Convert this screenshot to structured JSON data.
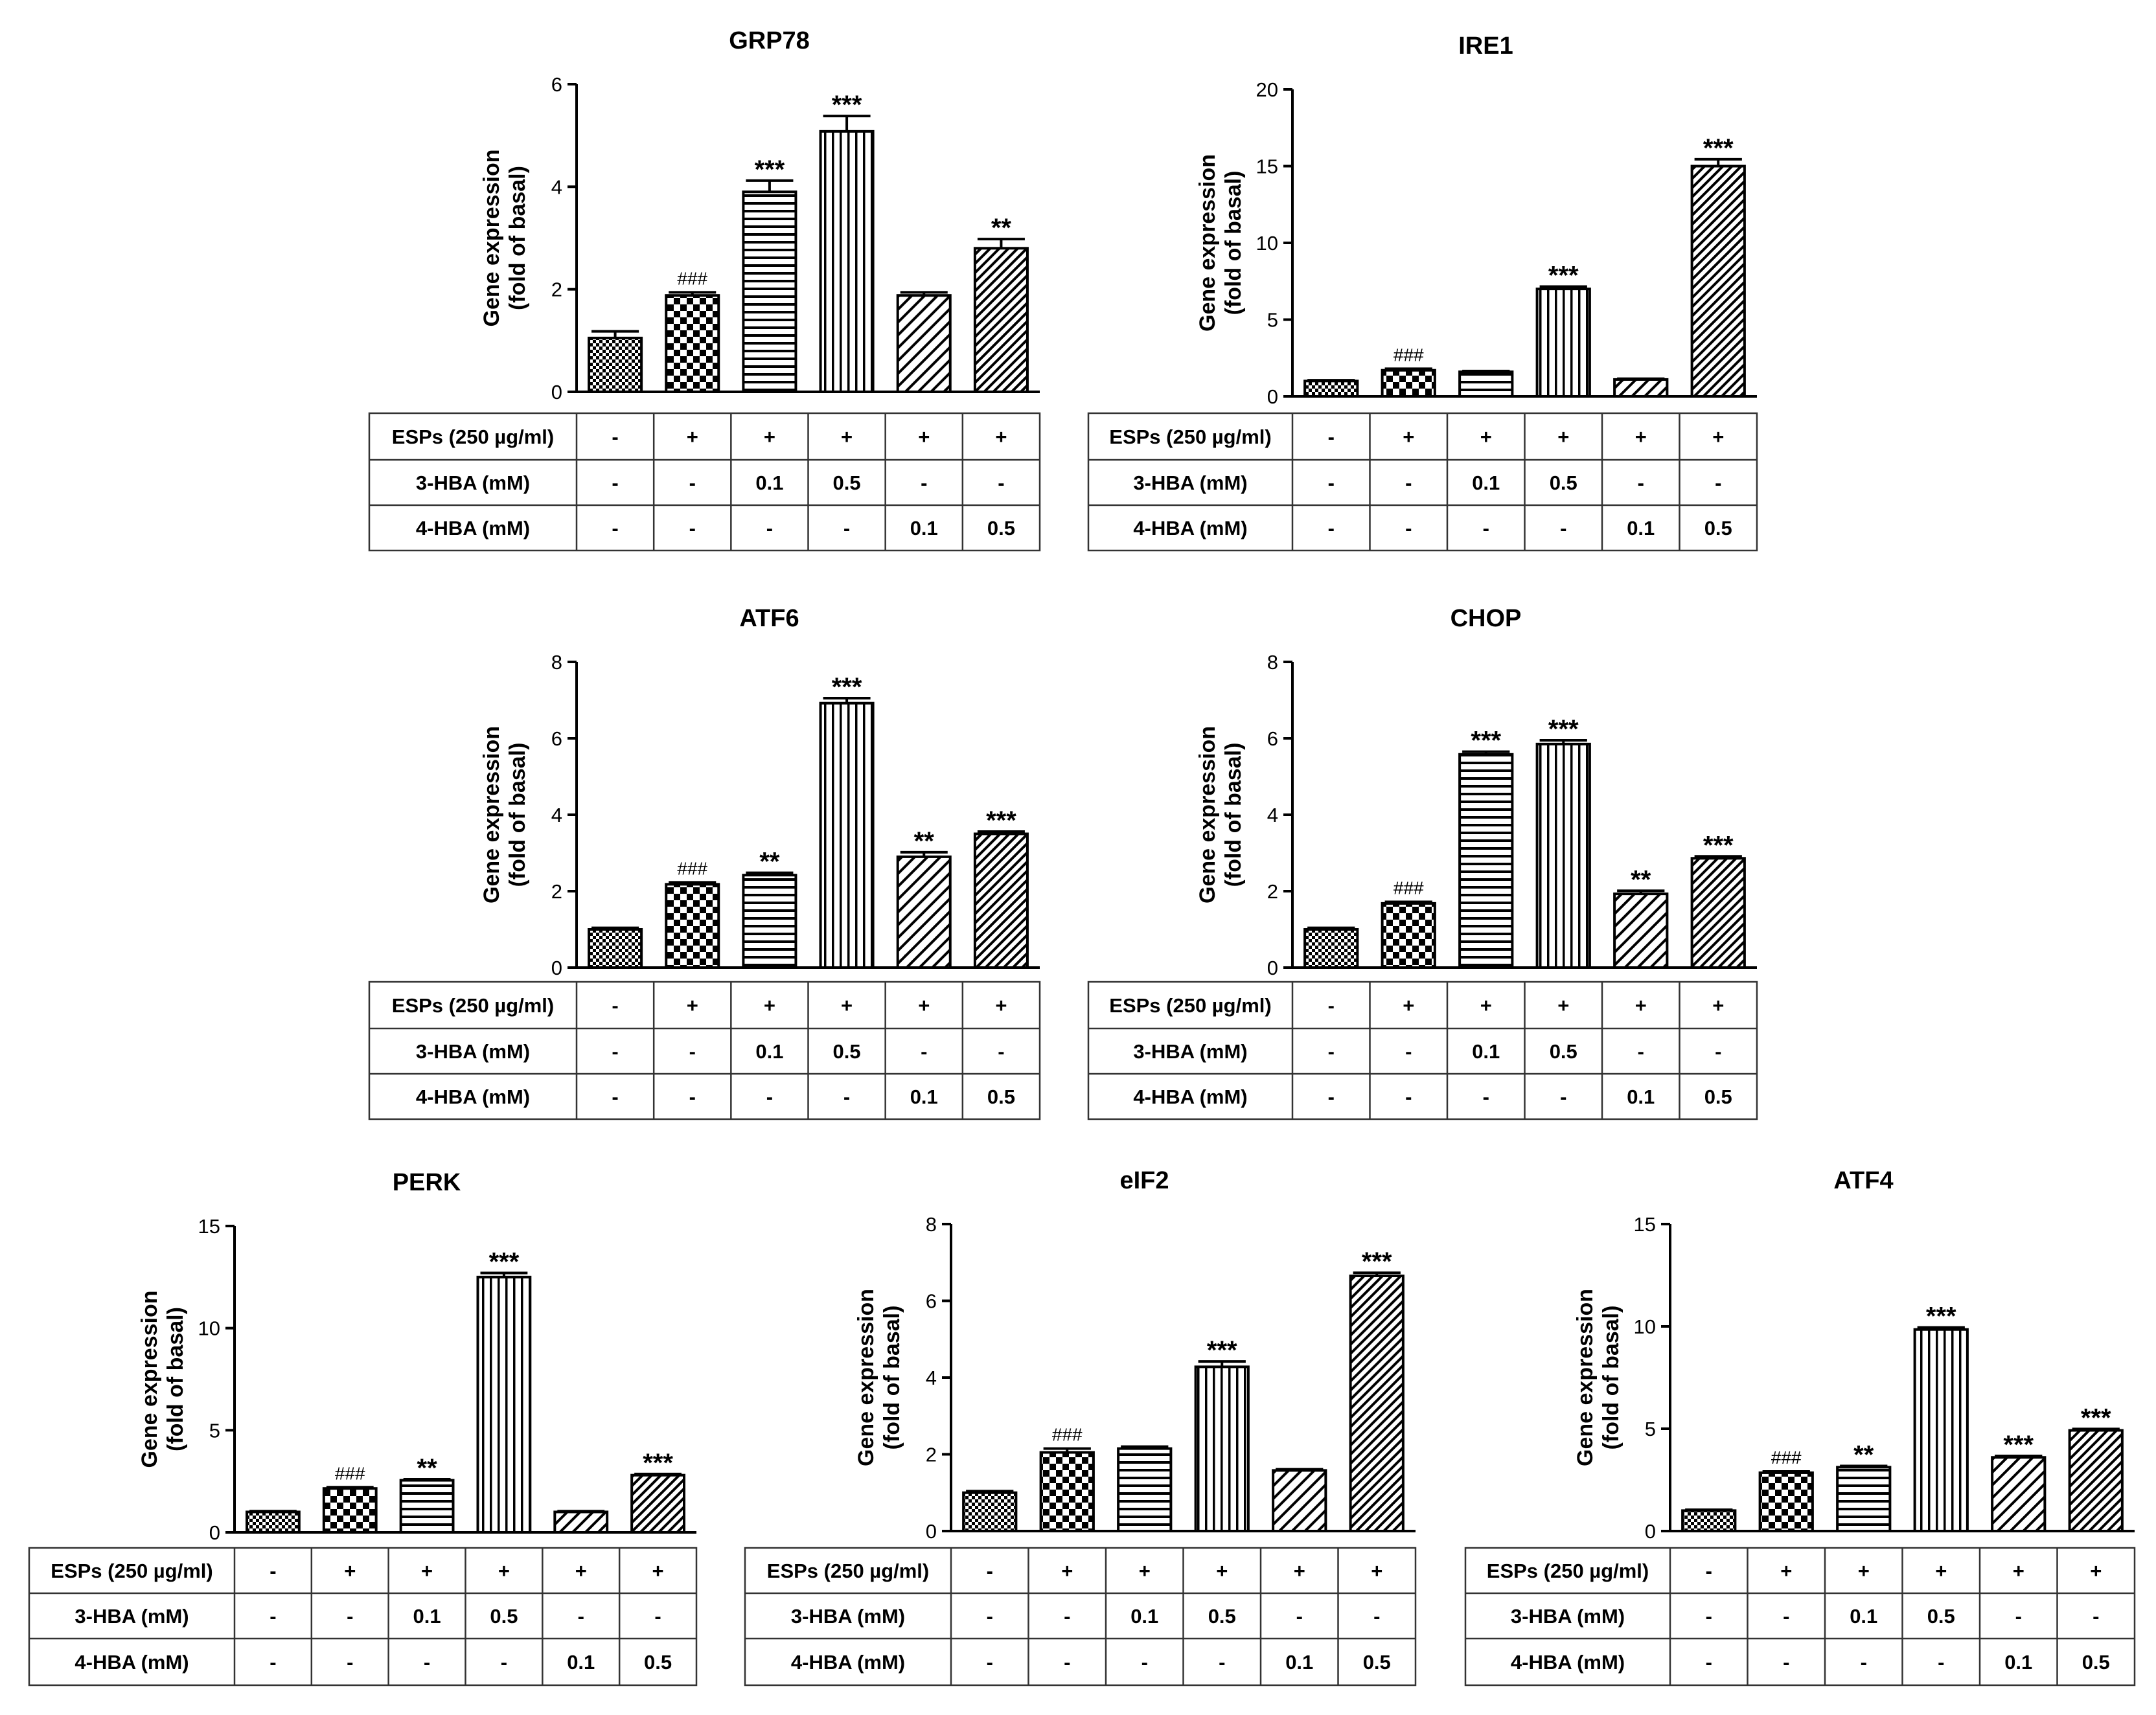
{
  "figure": {
    "row_labels": [
      "ESPs (250 µg/ml)",
      "3-HBA (mM)",
      "4-HBA (mM)"
    ],
    "treatments": [
      [
        "-",
        "+",
        "+",
        "+",
        "+",
        "+"
      ],
      [
        "-",
        "-",
        "0.1",
        "0.5",
        "-",
        "-"
      ],
      [
        "-",
        "-",
        "-",
        "-",
        "0.1",
        "0.5"
      ]
    ],
    "patterns": [
      "check-fine",
      "check-coarse",
      "horizontal",
      "vertical",
      "diag-light",
      "diag-dense"
    ],
    "colors": {
      "ink": "#000000",
      "background": "#ffffff"
    }
  },
  "chart_data": [
    {
      "type": "bar",
      "title": "GRP78",
      "ylabel": "Gene expression (fold of basal)",
      "ylabel_lines": [
        "Gene expression",
        "(fold of basal)"
      ],
      "ylim": [
        0,
        6
      ],
      "yticks": [
        0,
        2,
        4,
        6
      ],
      "values": [
        1.05,
        1.88,
        3.9,
        5.08,
        1.88,
        2.8
      ],
      "errors": [
        0.13,
        0.06,
        0.22,
        0.3,
        0.06,
        0.18
      ],
      "annotations": [
        "",
        "###",
        "***",
        "***",
        "",
        "**"
      ]
    },
    {
      "type": "bar",
      "title": "IRE1",
      "ylabel": "Gene expression (fold of basal)",
      "ylabel_lines": [
        "Gene expression",
        "(fold of basal)"
      ],
      "ylim": [
        0,
        20
      ],
      "yticks": [
        0,
        5,
        10,
        15,
        20
      ],
      "values": [
        1.0,
        1.7,
        1.6,
        7.0,
        1.1,
        15.0
      ],
      "errors": [
        0.05,
        0.1,
        0.05,
        0.15,
        0.05,
        0.45
      ],
      "annotations": [
        "",
        "###",
        "",
        "***",
        "",
        "***"
      ]
    },
    {
      "type": "bar",
      "title": "ATF6",
      "ylabel": "Gene expression (fold of basal)",
      "ylabel_lines": [
        "Gene expression",
        "(fold of basal)"
      ],
      "ylim": [
        0,
        8
      ],
      "yticks": [
        0,
        2,
        4,
        6,
        8
      ],
      "values": [
        1.0,
        2.18,
        2.42,
        6.92,
        2.9,
        3.5
      ],
      "errors": [
        0.04,
        0.05,
        0.06,
        0.13,
        0.12,
        0.06
      ],
      "annotations": [
        "",
        "###",
        "**",
        "***",
        "**",
        "***"
      ]
    },
    {
      "type": "bar",
      "title": "CHOP",
      "ylabel": "Gene expression (fold of basal)",
      "ylabel_lines": [
        "Gene expression",
        "(fold of basal)"
      ],
      "ylim": [
        0,
        8
      ],
      "yticks": [
        0,
        2,
        4,
        6,
        8
      ],
      "values": [
        1.0,
        1.68,
        5.58,
        5.85,
        1.93,
        2.86
      ],
      "errors": [
        0.04,
        0.04,
        0.07,
        0.1,
        0.08,
        0.05
      ],
      "annotations": [
        "",
        "###",
        "***",
        "***",
        "**",
        "***"
      ]
    },
    {
      "type": "bar",
      "title": "PERK",
      "ylabel": "Gene expression (fold of basal)",
      "ylabel_lines": [
        "Gene expression",
        "(fold of basal)"
      ],
      "ylim": [
        0,
        15
      ],
      "yticks": [
        0,
        5,
        10,
        15
      ],
      "values": [
        1.0,
        2.15,
        2.55,
        12.5,
        1.0,
        2.8
      ],
      "errors": [
        0.04,
        0.06,
        0.05,
        0.2,
        0.04,
        0.06
      ],
      "annotations": [
        "",
        "###",
        "**",
        "***",
        "",
        "***"
      ]
    },
    {
      "type": "bar",
      "title": "eIF2",
      "ylabel": "Gene expression (fold of basal)",
      "ylabel_lines": [
        "Gene expression",
        "(fold of basal)"
      ],
      "ylim": [
        0,
        8
      ],
      "yticks": [
        0,
        2,
        4,
        6,
        8
      ],
      "values": [
        1.0,
        2.05,
        2.15,
        4.28,
        1.58,
        6.65
      ],
      "errors": [
        0.04,
        0.1,
        0.05,
        0.14,
        0.03,
        0.08
      ],
      "annotations": [
        "",
        "###",
        "",
        "***",
        "",
        "***"
      ]
    },
    {
      "type": "bar",
      "title": "ATF4",
      "ylabel": "Gene expression (fold of basal)",
      "ylabel_lines": [
        "Gene expression",
        "(fold of basal)"
      ],
      "ylim": [
        0,
        15
      ],
      "yticks": [
        0,
        5,
        10,
        15
      ],
      "values": [
        1.0,
        2.85,
        3.12,
        9.85,
        3.6,
        4.92
      ],
      "errors": [
        0.04,
        0.06,
        0.06,
        0.1,
        0.07,
        0.07
      ],
      "annotations": [
        "",
        "###",
        "**",
        "***",
        "***",
        "***"
      ]
    }
  ]
}
